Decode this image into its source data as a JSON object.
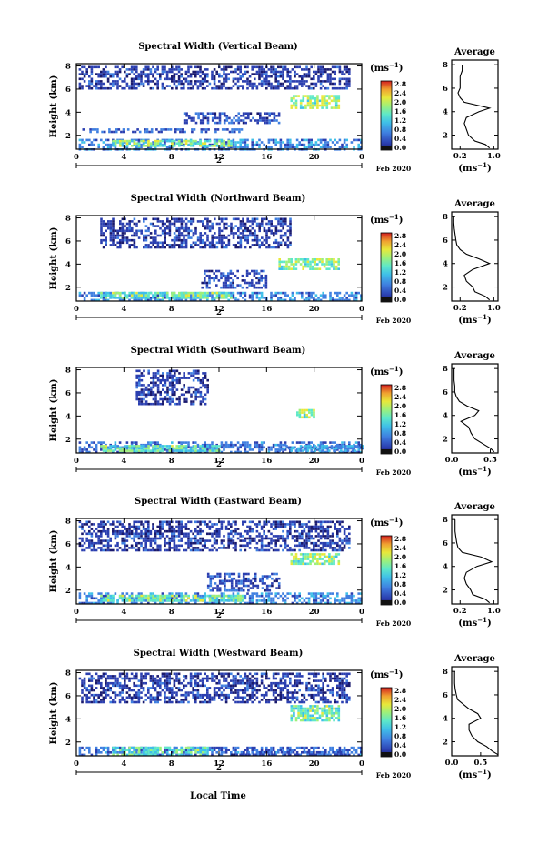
{
  "figure": {
    "colorbar_unit": "(ms",
    "colorbar_unit_sup": "−1",
    "colorbar_unit_close": ")",
    "colorbar_ticks": [
      "2.8",
      "2.4",
      "2.0",
      "1.6",
      "1.2",
      "0.8",
      "0.4",
      "0.0"
    ],
    "date_label": "Feb 2020",
    "day_label": "2",
    "x_ticks": [
      "0",
      "4",
      "8",
      "12",
      "16",
      "20",
      "0"
    ],
    "y_ticks": [
      "2",
      "4",
      "6",
      "8"
    ],
    "ylabel": "Height (km)",
    "xlabel": "Local Time",
    "avg_title": "Average",
    "avg_unit": "(ms",
    "avg_unit_sup": "−1",
    "avg_unit_close": ")",
    "colors": {
      "scale": [
        "#1a1a6e",
        "#2b3fb0",
        "#3f7fe0",
        "#3fc0e8",
        "#5ee8c8",
        "#9ef07a",
        "#e8e83a",
        "#f0a030",
        "#e84a28",
        "#d21e1e"
      ]
    }
  },
  "chart_data": [
    {
      "type": "heatmap",
      "title": "Spectral Width (Vertical Beam)",
      "xlabel": "",
      "ylabel": "Height (km)",
      "xlim": [
        0,
        24
      ],
      "ylim": [
        0.8,
        8.2
      ],
      "colorbar": {
        "label": "ms−1",
        "range": [
          0.0,
          3.0
        ]
      },
      "regions": [
        {
          "t0": 0.2,
          "t1": 24,
          "h0": 0.8,
          "h1": 1.7,
          "value": 0.7
        },
        {
          "t0": 3,
          "t1": 13,
          "h0": 1.0,
          "h1": 1.6,
          "value": 1.5
        },
        {
          "t0": 0.5,
          "t1": 14,
          "h0": 2.2,
          "h1": 2.6,
          "value": 0.5
        },
        {
          "t0": 9,
          "t1": 17,
          "h0": 3.0,
          "h1": 4.0,
          "value": 0.4
        },
        {
          "t0": 18,
          "t1": 22,
          "h0": 4.3,
          "h1": 5.5,
          "value": 1.6
        },
        {
          "t0": 0.2,
          "t1": 23,
          "h0": 6.0,
          "h1": 8.0,
          "value": 0.3
        }
      ],
      "average": {
        "title": "Average",
        "xticks": [
          "0.2",
          "1.0"
        ],
        "xlim": [
          0,
          1.1
        ],
        "height": [
          0.9,
          1.2,
          1.5,
          2.0,
          2.5,
          3.0,
          3.5,
          4.0,
          4.3,
          4.8,
          5.2,
          5.6,
          6.0,
          6.5,
          7.0,
          7.5,
          8.0
        ],
        "value": [
          0.9,
          0.8,
          0.55,
          0.4,
          0.35,
          0.3,
          0.35,
          0.65,
          0.9,
          0.3,
          0.2,
          0.15,
          0.2,
          0.2,
          0.2,
          0.25,
          0.25
        ]
      }
    },
    {
      "type": "heatmap",
      "title": "Spectral Width (Northward Beam)",
      "xlabel": "",
      "ylabel": "Height (km)",
      "xlim": [
        0,
        24
      ],
      "ylim": [
        0.8,
        8.2
      ],
      "colorbar": {
        "label": "ms−1",
        "range": [
          0.0,
          3.0
        ]
      },
      "regions": [
        {
          "t0": 0.2,
          "t1": 24,
          "h0": 0.8,
          "h1": 1.6,
          "value": 0.7
        },
        {
          "t0": 2,
          "t1": 13,
          "h0": 1.0,
          "h1": 1.6,
          "value": 1.4
        },
        {
          "t0": 10.5,
          "t1": 16,
          "h0": 2.0,
          "h1": 3.5,
          "value": 0.4
        },
        {
          "t0": 17,
          "t1": 22,
          "h0": 3.5,
          "h1": 4.5,
          "value": 1.5
        },
        {
          "t0": 2,
          "t1": 18,
          "h0": 5.5,
          "h1": 8.0,
          "value": 0.3
        }
      ],
      "average": {
        "title": "Average",
        "xticks": [
          "0.2",
          "1.0"
        ],
        "xlim": [
          0,
          1.1
        ],
        "height": [
          0.9,
          1.2,
          1.6,
          2.0,
          2.5,
          3.0,
          3.5,
          4.0,
          4.4,
          4.8,
          5.2,
          5.6,
          6.0,
          6.5,
          7.0,
          7.5,
          8.0
        ],
        "value": [
          0.9,
          0.8,
          0.55,
          0.5,
          0.35,
          0.3,
          0.5,
          0.9,
          0.65,
          0.35,
          0.2,
          0.12,
          0.1,
          0.08,
          0.06,
          0.05,
          0.05
        ]
      }
    },
    {
      "type": "heatmap",
      "title": "Spectral Width (Southward Beam)",
      "xlabel": "",
      "ylabel": "Height (km)",
      "xlim": [
        0,
        24
      ],
      "ylim": [
        0.8,
        8.2
      ],
      "colorbar": {
        "label": "ms−1",
        "range": [
          0.0,
          3.0
        ]
      },
      "regions": [
        {
          "t0": 0.2,
          "t1": 24,
          "h0": 0.8,
          "h1": 1.8,
          "value": 0.6
        },
        {
          "t0": 2,
          "t1": 12,
          "h0": 0.9,
          "h1": 1.5,
          "value": 1.3
        },
        {
          "t0": 17,
          "t1": 24,
          "h0": 0.9,
          "h1": 1.5,
          "value": 0.8
        },
        {
          "t0": 18.5,
          "t1": 20,
          "h0": 3.8,
          "h1": 4.6,
          "value": 1.6
        },
        {
          "t0": 5,
          "t1": 11,
          "h0": 5.0,
          "h1": 8.0,
          "value": 0.3
        }
      ],
      "average": {
        "title": "Average",
        "xticks": [
          "0.0",
          "0.5"
        ],
        "xlim": [
          0,
          0.6
        ],
        "height": [
          0.9,
          1.2,
          1.6,
          2.0,
          2.5,
          3.0,
          3.5,
          4.0,
          4.4,
          4.8,
          5.2,
          5.6,
          6.0,
          6.5,
          7.0,
          7.5,
          8.0
        ],
        "value": [
          0.55,
          0.5,
          0.4,
          0.3,
          0.25,
          0.22,
          0.12,
          0.3,
          0.35,
          0.2,
          0.1,
          0.06,
          0.04,
          0.04,
          0.03,
          0.03,
          0.03
        ]
      }
    },
    {
      "type": "heatmap",
      "title": "Spectral Width (Eastward Beam)",
      "xlabel": "",
      "ylabel": "Height (km)",
      "xlim": [
        0,
        24
      ],
      "ylim": [
        0.8,
        8.2
      ],
      "colorbar": {
        "label": "ms−1",
        "range": [
          0.0,
          3.0
        ]
      },
      "regions": [
        {
          "t0": 0.2,
          "t1": 24,
          "h0": 0.8,
          "h1": 1.8,
          "value": 0.7
        },
        {
          "t0": 2,
          "t1": 14,
          "h0": 1.0,
          "h1": 1.6,
          "value": 1.4
        },
        {
          "t0": 11,
          "t1": 17,
          "h0": 2.0,
          "h1": 3.5,
          "value": 0.4
        },
        {
          "t0": 18,
          "t1": 22,
          "h0": 4.3,
          "h1": 5.2,
          "value": 1.6
        },
        {
          "t0": 0.2,
          "t1": 23,
          "h0": 5.5,
          "h1": 8.0,
          "value": 0.3
        }
      ],
      "average": {
        "title": "Average",
        "xticks": [
          "0.2",
          "1.0"
        ],
        "xlim": [
          0,
          1.1
        ],
        "height": [
          0.9,
          1.2,
          1.6,
          2.0,
          2.5,
          3.0,
          3.5,
          4.0,
          4.4,
          4.8,
          5.2,
          5.6,
          6.0,
          6.5,
          7.0,
          7.5,
          8.0
        ],
        "value": [
          0.9,
          0.8,
          0.5,
          0.45,
          0.35,
          0.3,
          0.35,
          0.6,
          0.95,
          0.7,
          0.25,
          0.15,
          0.12,
          0.1,
          0.08,
          0.08,
          0.08
        ]
      }
    },
    {
      "type": "heatmap",
      "title": "Spectral Width (Westward Beam)",
      "xlabel": "Local Time",
      "ylabel": "Height (km)",
      "xlim": [
        0,
        24
      ],
      "ylim": [
        0.8,
        8.2
      ],
      "colorbar": {
        "label": "ms−1",
        "range": [
          0.0,
          3.0
        ]
      },
      "regions": [
        {
          "t0": 0.2,
          "t1": 24,
          "h0": 0.8,
          "h1": 1.6,
          "value": 0.6
        },
        {
          "t0": 3,
          "t1": 11,
          "h0": 0.9,
          "h1": 1.6,
          "value": 1.3
        },
        {
          "t0": 13,
          "t1": 23,
          "h0": 0.8,
          "h1": 1.2,
          "value": 0.4
        },
        {
          "t0": 18,
          "t1": 22,
          "h0": 3.8,
          "h1": 5.2,
          "value": 1.4
        },
        {
          "t0": 0.2,
          "t1": 23,
          "h0": 5.5,
          "h1": 8.0,
          "value": 0.3
        }
      ],
      "average": {
        "title": "Average",
        "xticks": [
          "0.0",
          "0.5"
        ],
        "xlim": [
          0,
          0.8
        ],
        "height": [
          0.9,
          1.2,
          1.6,
          2.0,
          2.5,
          3.0,
          3.5,
          4.0,
          4.4,
          4.8,
          5.2,
          5.6,
          6.0,
          6.5,
          7.0,
          7.5,
          8.0
        ],
        "value": [
          0.8,
          0.7,
          0.6,
          0.45,
          0.35,
          0.3,
          0.3,
          0.5,
          0.45,
          0.3,
          0.2,
          0.1,
          0.08,
          0.06,
          0.05,
          0.05,
          0.05
        ]
      }
    }
  ]
}
